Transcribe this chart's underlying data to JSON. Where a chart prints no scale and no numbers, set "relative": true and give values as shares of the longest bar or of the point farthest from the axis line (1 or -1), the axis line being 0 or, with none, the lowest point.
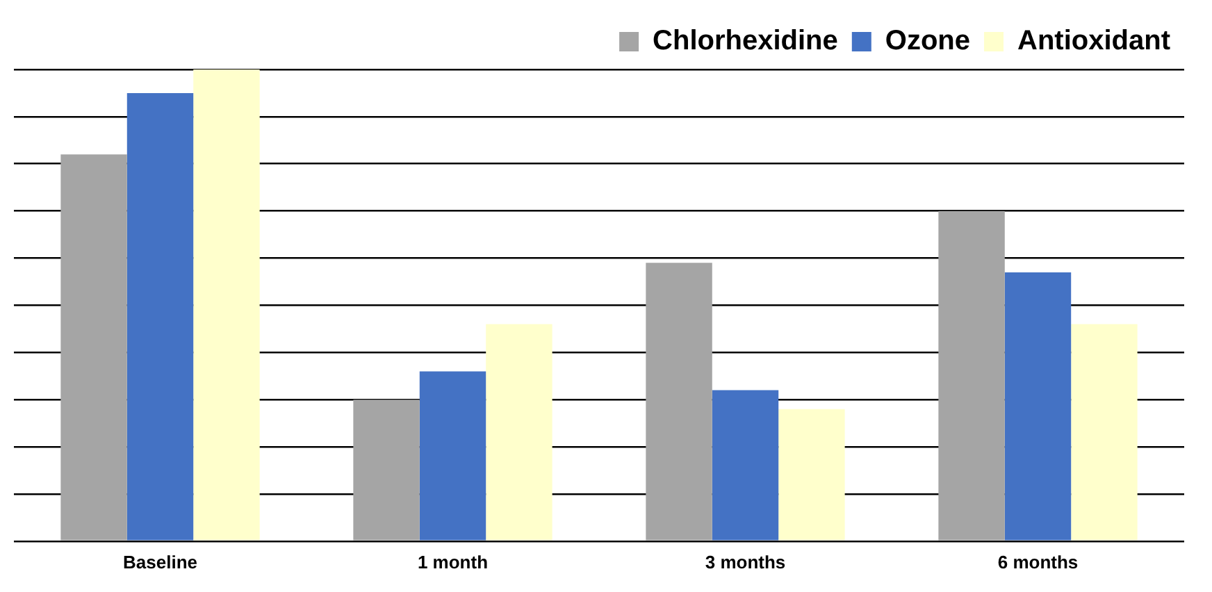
{
  "chart_data": {
    "type": "bar",
    "relative": true,
    "categories": [
      "Baseline",
      "1 month",
      "3 months",
      "6 months"
    ],
    "series": [
      {
        "name": "Chlorhexidine",
        "color": "#a5a5a5",
        "values": [
          0.82,
          0.3,
          0.59,
          0.7
        ]
      },
      {
        "name": "Ozone",
        "color": "#4472c4",
        "values": [
          0.95,
          0.36,
          0.32,
          0.57
        ]
      },
      {
        "name": "Antioxidant",
        "color": "#ffffcc",
        "values": [
          1,
          0.46,
          0.28,
          0.46
        ]
      }
    ],
    "grid": "y",
    "legend": "top right"
  }
}
